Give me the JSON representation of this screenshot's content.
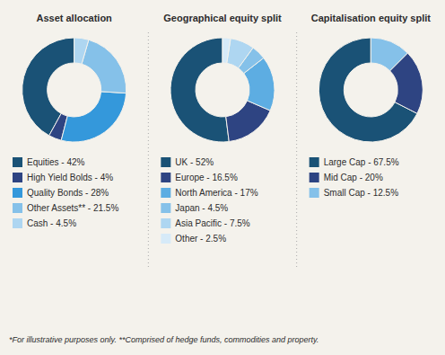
{
  "chart_data": [
    {
      "type": "pie",
      "title": "Asset allocation",
      "categories": [
        "Equities - 42%",
        "High Yield Bolds - 4%",
        "Quality Bonds - 28%",
        "Other Assets** - 21.5%",
        "Cash - 4.5%"
      ],
      "values": [
        42,
        4,
        28,
        21.5,
        4.5
      ],
      "colors": [
        "#1a5276",
        "#2e4482",
        "#3498db",
        "#85c1e9",
        "#aed6f1"
      ],
      "legend": "bottom",
      "annotations": [
        "*For illustrative purposes only.  **Comprised of hedge funds, commodities and property."
      ]
    },
    {
      "type": "pie",
      "title": "Geographical equity split",
      "categories": [
        "UK - 52%",
        "Europe - 16.5%",
        "North America - 17%",
        "Japan - 4.5%",
        "Asia Pacific - 7.5%",
        "Other - 2.5%"
      ],
      "values": [
        52,
        16.5,
        17,
        4.5,
        7.5,
        2.5
      ],
      "colors": [
        "#1a5276",
        "#2e4482",
        "#5dade2",
        "#85c1e9",
        "#aed6f1",
        "#d6eaf8"
      ],
      "legend": "bottom"
    },
    {
      "type": "pie",
      "title": "Capitalisation equity split",
      "categories": [
        "Large Cap - 67.5%",
        "Mid Cap - 20%",
        "Small Cap - 12.5%"
      ],
      "values": [
        67.5,
        20,
        12.5
      ],
      "colors": [
        "#1a5276",
        "#2e4482",
        "#85c1e9"
      ],
      "legend": "bottom"
    }
  ]
}
